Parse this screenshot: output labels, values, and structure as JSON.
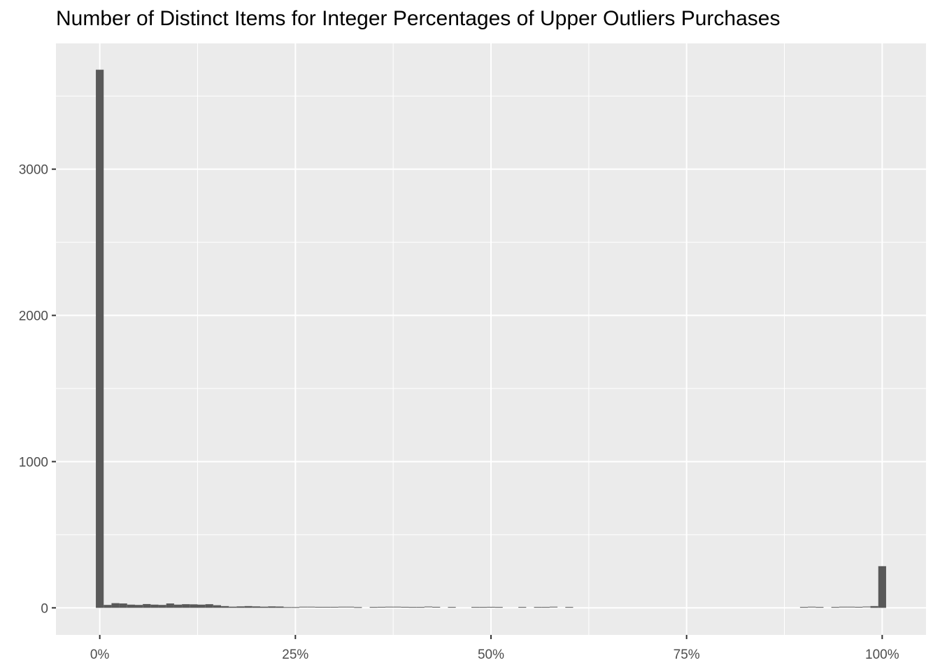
{
  "chart_data": {
    "type": "bar",
    "title": "Number of Distinct Items for Integer Percentages of Upper Outliers Purchases",
    "xlabel": "",
    "ylabel": "",
    "x_ticks": [
      {
        "value": 0,
        "label": "0%"
      },
      {
        "value": 25,
        "label": "25%"
      },
      {
        "value": 50,
        "label": "50%"
      },
      {
        "value": 75,
        "label": "75%"
      },
      {
        "value": 100,
        "label": "100%"
      }
    ],
    "y_ticks": [
      {
        "value": 0,
        "label": "0"
      },
      {
        "value": 1000,
        "label": "1000"
      },
      {
        "value": 2000,
        "label": "2000"
      },
      {
        "value": 3000,
        "label": "3000"
      }
    ],
    "xlim": [
      -5.6,
      105.6
    ],
    "ylim": [
      -185,
      3860
    ],
    "grid": true,
    "legend": "none",
    "bar_color": "#595959",
    "panel_color": "#ebebeb",
    "x": [
      0,
      1,
      2,
      3,
      4,
      5,
      6,
      7,
      8,
      9,
      10,
      11,
      12,
      13,
      14,
      15,
      16,
      17,
      18,
      19,
      20,
      21,
      22,
      23,
      24,
      25,
      26,
      27,
      28,
      29,
      30,
      31,
      32,
      33,
      35,
      36,
      37,
      38,
      39,
      40,
      41,
      42,
      43,
      45,
      48,
      49,
      50,
      51,
      54,
      56,
      57,
      58,
      60,
      90,
      91,
      92,
      94,
      95,
      96,
      97,
      98,
      99,
      100
    ],
    "values": [
      3680,
      20,
      32,
      30,
      22,
      20,
      26,
      22,
      20,
      30,
      22,
      25,
      24,
      22,
      25,
      18,
      12,
      8,
      10,
      12,
      10,
      8,
      10,
      9,
      5,
      5,
      3,
      3,
      2,
      2,
      2,
      3,
      3,
      5,
      1,
      2,
      3,
      3,
      2,
      1,
      1,
      4,
      2,
      1,
      1,
      1,
      2,
      1,
      1,
      1,
      1,
      3,
      1,
      1,
      3,
      1,
      1,
      3,
      3,
      2,
      4,
      12,
      285
    ]
  }
}
